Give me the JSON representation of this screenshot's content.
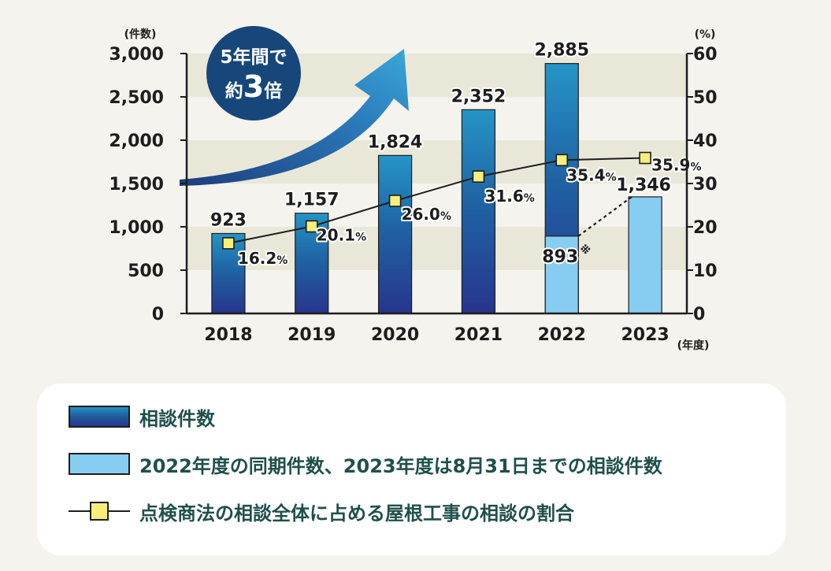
{
  "chart_data": {
    "type": "bar+line",
    "categories": [
      "2018",
      "2019",
      "2020",
      "2021",
      "2022",
      "2023"
    ],
    "series": [
      {
        "name": "相談件数",
        "axis": "left",
        "values": [
          923,
          1157,
          1824,
          2352,
          2885,
          null
        ],
        "labels": [
          "923",
          "1,157",
          "1,824",
          "2,352",
          "2,885",
          ""
        ]
      },
      {
        "name": "2022年度の同期件数、2023年度は8月31日までの相談件数",
        "axis": "left",
        "values": [
          null,
          null,
          null,
          null,
          893,
          1346
        ],
        "labels": [
          "",
          "",
          "",
          "",
          "893",
          "1,346"
        ]
      },
      {
        "name": "点検商法の相談全体に占める屋根工事の相談の割合",
        "axis": "right",
        "type": "line",
        "values": [
          16.2,
          20.1,
          26.0,
          31.6,
          35.4,
          35.9
        ],
        "labels": [
          "16.2",
          "20.1",
          "26.0",
          "31.6",
          "35.4",
          "35.9"
        ]
      }
    ],
    "left_axis": {
      "unit": "(件数)",
      "ylim": [
        0,
        3000
      ],
      "ticks": [
        "0",
        "500",
        "1,000",
        "1,500",
        "2,000",
        "2,500",
        "3,000"
      ]
    },
    "right_axis": {
      "unit": "(%)",
      "ylim": [
        0,
        60
      ],
      "ticks": [
        "0",
        "10",
        "20",
        "30",
        "40",
        "50",
        "60"
      ]
    },
    "x_unit": "(年度)",
    "percent_suffix": "%",
    "note_mark": "※",
    "callout": {
      "line1": "5年間で",
      "line2_prefix": "約",
      "line2_number": "3",
      "line2_suffix": "倍"
    }
  },
  "legend": {
    "items": [
      {
        "label": "相談件数"
      },
      {
        "label": "2022年度の同期件数、2023年度は8月31日までの相談件数"
      },
      {
        "label": "点検商法の相談全体に占める屋根工事の相談の割合"
      }
    ]
  },
  "colors": {
    "background": "#f4f3ee",
    "band": "#e9e8d8",
    "bar_top": "#2694c6",
    "bar_bottom": "#27358c",
    "bar_light": "#86cdf1",
    "marker": "#f7ef7a",
    "badge": "#17477a",
    "legend_text": "#1f4f4c"
  }
}
